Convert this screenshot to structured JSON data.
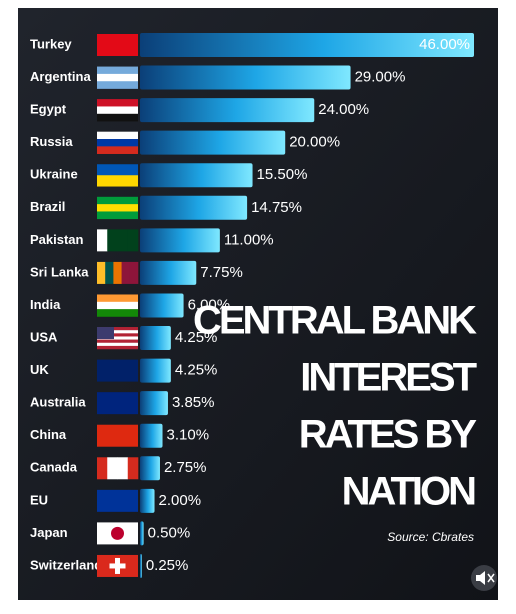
{
  "chart_data": {
    "type": "bar",
    "orientation": "horizontal",
    "title_lines": [
      "CENTRAL BANK",
      "INTEREST",
      "RATES BY",
      "NATION"
    ],
    "source": "Source: Cbrates",
    "categories": [
      "Turkey",
      "Argentina",
      "Egypt",
      "Russia",
      "Ukraine",
      "Brazil",
      "Pakistan",
      "Sri Lanka",
      "India",
      "USA",
      "UK",
      "Australia",
      "China",
      "Canada",
      "EU",
      "Japan",
      "Switzerland"
    ],
    "values": [
      46.0,
      29.0,
      24.0,
      20.0,
      15.5,
      14.75,
      11.0,
      7.75,
      6.0,
      4.25,
      4.25,
      3.85,
      3.1,
      2.75,
      2.0,
      0.5,
      0.25
    ],
    "value_labels": [
      "46.00%",
      "29.00%",
      "24.00%",
      "20.00%",
      "15.50%",
      "14.75%",
      "11.00%",
      "7.75%",
      "6.00%",
      "4.25%",
      "4.25%",
      "3.85%",
      "3.10%",
      "2.75%",
      "2.00%",
      "0.50%",
      "0.25%"
    ],
    "xlim": [
      0,
      46
    ]
  }
}
